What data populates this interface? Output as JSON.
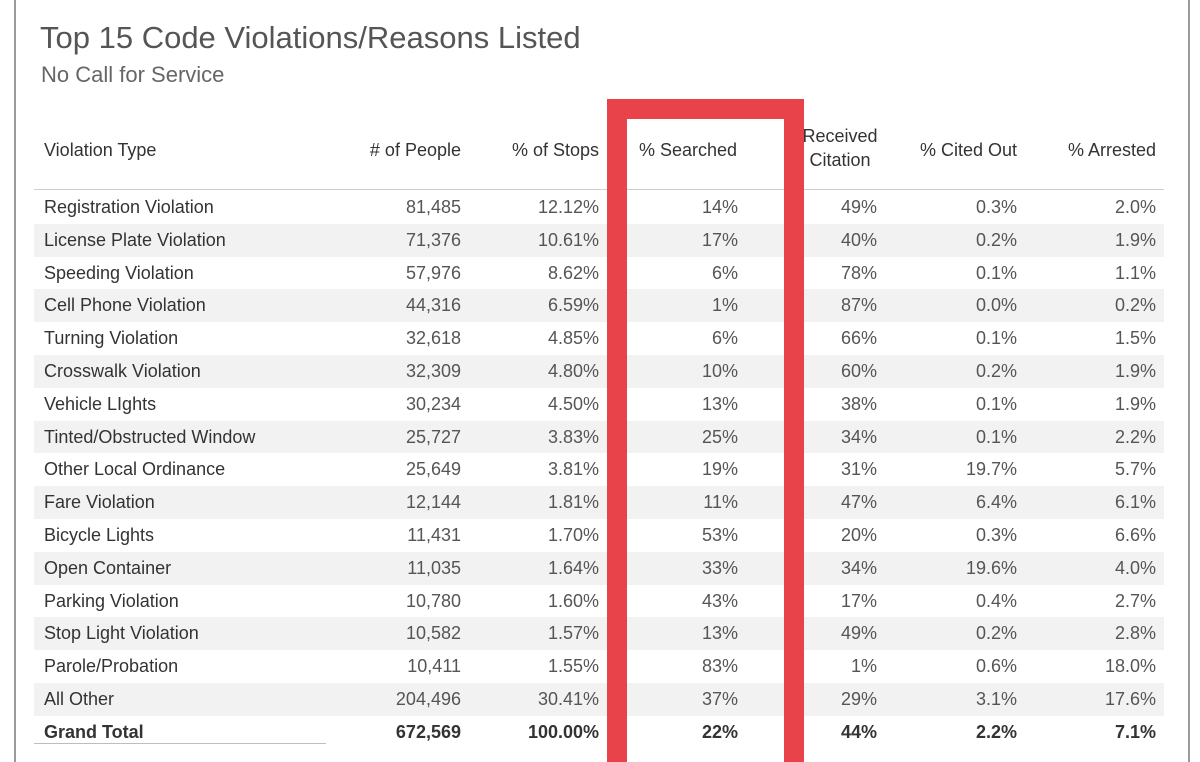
{
  "title": "Top 15 Code Violations/Reasons Listed",
  "subtitle": "No Call for Service",
  "colors": {
    "highlight": "#e8424a",
    "row_shade": "#f2f2f2"
  },
  "chart_data": {
    "type": "table",
    "columns": [
      "Violation Type",
      "# of People",
      "% of Stops",
      "% Searched",
      "Received Citation",
      "% Cited Out",
      "% Arrested"
    ],
    "column_labels": [
      [
        "Violation Type"
      ],
      [
        "# of People"
      ],
      [
        "% of Stops"
      ],
      [
        "% Searched"
      ],
      [
        "Received",
        "Citation"
      ],
      [
        "% Cited Out"
      ],
      [
        "% Arrested"
      ]
    ],
    "rows": [
      [
        "Registration Violation",
        "81,485",
        "12.12%",
        "14%",
        "49%",
        "0.3%",
        "2.0%"
      ],
      [
        "License Plate Violation",
        "71,376",
        "10.61%",
        "17%",
        "40%",
        "0.2%",
        "1.9%"
      ],
      [
        "Speeding Violation",
        "57,976",
        "8.62%",
        "6%",
        "78%",
        "0.1%",
        "1.1%"
      ],
      [
        "Cell Phone Violation",
        "44,316",
        "6.59%",
        "1%",
        "87%",
        "0.0%",
        "0.2%"
      ],
      [
        "Turning Violation",
        "32,618",
        "4.85%",
        "6%",
        "66%",
        "0.1%",
        "1.5%"
      ],
      [
        "Crosswalk Violation",
        "32,309",
        "4.80%",
        "10%",
        "60%",
        "0.2%",
        "1.9%"
      ],
      [
        "Vehicle LIghts",
        "30,234",
        "4.50%",
        "13%",
        "38%",
        "0.1%",
        "1.9%"
      ],
      [
        "Tinted/Obstructed Window",
        "25,727",
        "3.83%",
        "25%",
        "34%",
        "0.1%",
        "2.2%"
      ],
      [
        "Other Local Ordinance",
        "25,649",
        "3.81%",
        "19%",
        "31%",
        "19.7%",
        "5.7%"
      ],
      [
        "Fare Violation",
        "12,144",
        "1.81%",
        "11%",
        "47%",
        "6.4%",
        "6.1%"
      ],
      [
        "Bicycle Lights",
        "11,431",
        "1.70%",
        "53%",
        "20%",
        "0.3%",
        "6.6%"
      ],
      [
        "Open Container",
        "11,035",
        "1.64%",
        "33%",
        "34%",
        "19.6%",
        "4.0%"
      ],
      [
        "Parking Violation",
        "10,780",
        "1.60%",
        "43%",
        "17%",
        "0.4%",
        "2.7%"
      ],
      [
        "Stop Light Violation",
        "10,582",
        "1.57%",
        "13%",
        "49%",
        "0.2%",
        "2.8%"
      ],
      [
        "Parole/Probation",
        "10,411",
        "1.55%",
        "83%",
        "1%",
        "0.6%",
        "18.0%"
      ],
      [
        "All Other",
        "204,496",
        "30.41%",
        "37%",
        "29%",
        "3.1%",
        "17.6%"
      ]
    ],
    "total": [
      "Grand Total",
      "672,569",
      "100.00%",
      "22%",
      "44%",
      "2.2%",
      "7.1%"
    ],
    "highlighted_column": "% Searched"
  }
}
